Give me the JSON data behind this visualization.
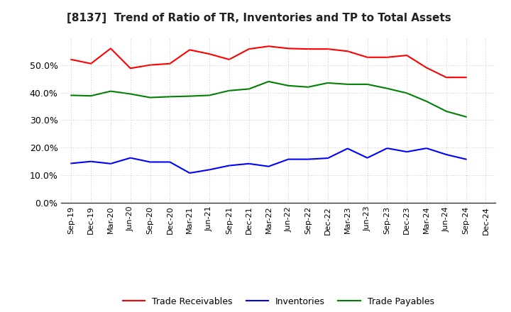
{
  "title": "[8137]  Trend of Ratio of TR, Inventories and TP to Total Assets",
  "x_labels": [
    "Sep-19",
    "Dec-19",
    "Mar-20",
    "Jun-20",
    "Sep-20",
    "Dec-20",
    "Mar-21",
    "Jun-21",
    "Sep-21",
    "Dec-21",
    "Mar-22",
    "Jun-22",
    "Sep-22",
    "Dec-22",
    "Mar-23",
    "Jun-23",
    "Sep-23",
    "Dec-23",
    "Mar-24",
    "Jun-24",
    "Sep-24",
    "Dec-24"
  ],
  "trade_receivables": [
    0.52,
    0.505,
    0.56,
    0.488,
    0.5,
    0.505,
    0.555,
    0.54,
    0.52,
    0.558,
    0.568,
    0.56,
    0.558,
    0.558,
    0.55,
    0.528,
    0.528,
    0.535,
    0.49,
    0.455,
    0.455,
    null
  ],
  "inventories": [
    0.143,
    0.15,
    0.142,
    0.163,
    0.148,
    0.148,
    0.108,
    0.12,
    0.135,
    0.142,
    0.132,
    0.158,
    0.158,
    0.162,
    0.197,
    0.163,
    0.198,
    0.185,
    0.198,
    0.175,
    0.158,
    null
  ],
  "trade_payables": [
    0.39,
    0.388,
    0.405,
    0.395,
    0.382,
    0.385,
    0.387,
    0.39,
    0.407,
    0.413,
    0.44,
    0.425,
    0.42,
    0.435,
    0.43,
    0.43,
    0.415,
    0.398,
    0.368,
    0.332,
    0.312,
    null
  ],
  "tr_color": "#ff0000",
  "inv_color": "#0000ff",
  "tp_color": "#008000",
  "ylim": [
    0.0,
    0.6
  ],
  "yticks": [
    0.0,
    0.1,
    0.2,
    0.3,
    0.4,
    0.5
  ],
  "legend_labels": [
    "Trade Receivables",
    "Inventories",
    "Trade Payables"
  ],
  "bg_color": "#ffffff",
  "plot_bg_color": "#ffffff"
}
